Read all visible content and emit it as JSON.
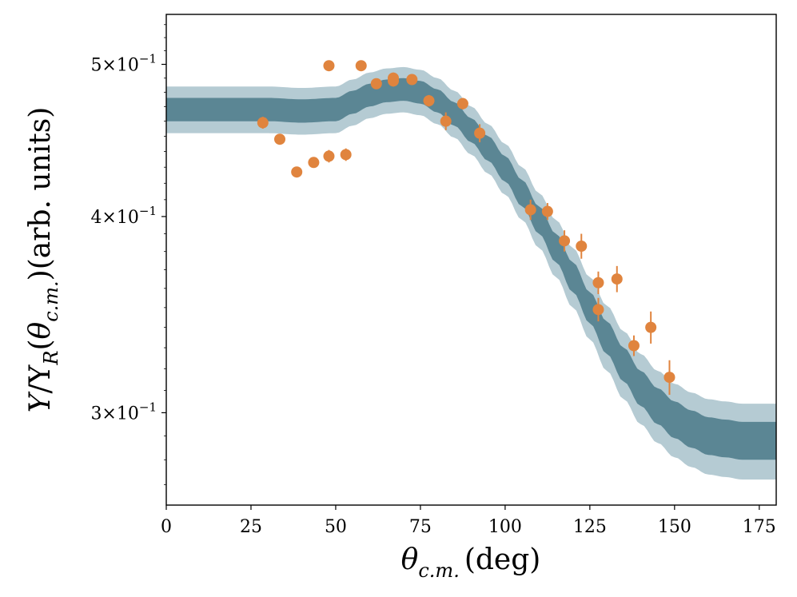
{
  "chart_data": {
    "type": "scatter",
    "title": "",
    "xlabel": "θ_{c.m.} (deg)",
    "xlabel_parts": {
      "symbol": "θ",
      "subscript": "c.m.",
      "unit": "(deg)"
    },
    "ylabel": "Y/Y_R(θ_{c.m.})(arb. units)",
    "ylabel_parts": {
      "Y": "Y",
      "slash": "/",
      "YR": "Y",
      "R": "R",
      "open": "(",
      "theta": "θ",
      "cm": "c.m.",
      "close": ")",
      "units": "(arb. units)"
    },
    "xlim": [
      0,
      180
    ],
    "ylim": [
      0.262,
      0.538
    ],
    "yscale": "log",
    "grid": false,
    "x_ticks": [
      0,
      25,
      50,
      75,
      100,
      125,
      150,
      175
    ],
    "y_ticks": [
      {
        "value": 0.3,
        "label": "3×10",
        "exp": "−1"
      },
      {
        "value": 0.4,
        "label": "4×10",
        "exp": "−1"
      },
      {
        "value": 0.5,
        "label": "5×10",
        "exp": "−1"
      }
    ],
    "band": {
      "color_inner": "#5b8694",
      "color_outer": "#b5cbd3",
      "x": [
        0,
        10,
        20,
        30,
        40,
        50,
        55,
        60,
        65,
        70,
        75,
        80,
        85,
        90,
        95,
        100,
        105,
        110,
        115,
        120,
        125,
        130,
        135,
        140,
        145,
        150,
        155,
        160,
        165,
        170,
        175,
        180
      ],
      "center": [
        0.468,
        0.468,
        0.468,
        0.468,
        0.467,
        0.468,
        0.473,
        0.478,
        0.481,
        0.482,
        0.48,
        0.474,
        0.465,
        0.454,
        0.442,
        0.429,
        0.414,
        0.398,
        0.382,
        0.366,
        0.35,
        0.335,
        0.322,
        0.311,
        0.303,
        0.297,
        0.293,
        0.29,
        0.289,
        0.288,
        0.288,
        0.288
      ],
      "inner_halfwidth": 0.008,
      "outer_halfwidth": 0.016
    },
    "series": [
      {
        "color": "#e0843e",
        "x": [
          28.5,
          33.5,
          38.5,
          43.5,
          48,
          48,
          53,
          57.5,
          62,
          67,
          67,
          72.5,
          77.5,
          82.5,
          87.5,
          92.5,
          107.5,
          112.5,
          117.5,
          122.5,
          127.5,
          127.5,
          133,
          138,
          143,
          148.5
        ],
        "y": [
          0.459,
          0.448,
          0.427,
          0.433,
          0.499,
          0.437,
          0.438,
          0.499,
          0.486,
          0.488,
          0.49,
          0.489,
          0.474,
          0.46,
          0.472,
          0.452,
          0.404,
          0.403,
          0.386,
          0.383,
          0.363,
          0.349,
          0.365,
          0.331,
          0.34,
          0.316
        ],
        "yerr": [
          0.004,
          0.003,
          0.003,
          0.003,
          0.003,
          0.004,
          0.004,
          0.003,
          0.003,
          0.004,
          0.004,
          0.003,
          0.004,
          0.006,
          0.004,
          0.006,
          0.006,
          0.005,
          0.006,
          0.007,
          0.006,
          0.006,
          0.007,
          0.005,
          0.008,
          0.008
        ]
      }
    ]
  }
}
